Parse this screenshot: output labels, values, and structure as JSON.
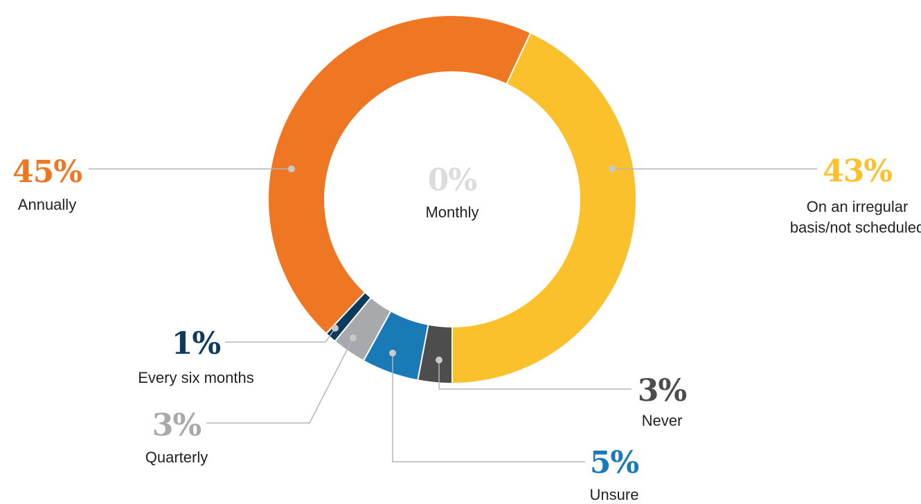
{
  "chart_data": {
    "type": "pie",
    "donut": true,
    "categories": [
      "On an irregular basis/not scheduled",
      "Never",
      "Unsure",
      "Quarterly",
      "Every six months",
      "Monthly",
      "Annually"
    ],
    "values": [
      43,
      3,
      5,
      3,
      1,
      0,
      45
    ],
    "value_labels": [
      "43%",
      "3%",
      "5%",
      "3%",
      "1%",
      "0%",
      "45%"
    ],
    "colors": [
      "#fbc12d",
      "#4d4d4d",
      "#1a7ab5",
      "#a7a9ac",
      "#0d3b5e",
      "#dcdcdc",
      "#ef7622"
    ]
  }
}
